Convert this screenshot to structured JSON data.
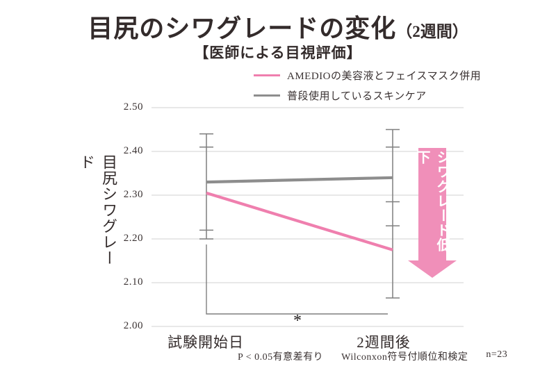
{
  "header": {
    "title": "目尻のシワグレードの変化",
    "title_suffix": "（2週間）",
    "subtitle": "【医師による目視評価】"
  },
  "footer": {
    "significance_note": "P < 0.05有意差有り",
    "test_note": "Wilconxon符号付順位和検定",
    "sample_note": "n=23"
  },
  "annotation": {
    "arrow_label": "シワグレード低下"
  },
  "colors": {
    "pink": "#ef7fae",
    "gray": "#8d8d8d",
    "arrow_pink": "#f08fb9",
    "gridline": "#d9d9d9",
    "error_bar": "#7f7f7f"
  },
  "chart_data": {
    "type": "line",
    "title": "目尻のシワグレードの変化（2週間）",
    "subtitle": "【医師による目視評価】",
    "ylabel": "目尻シワグレード",
    "xlabel": "",
    "ylim": [
      2.0,
      2.5
    ],
    "ytick_step": 0.1,
    "yticks": [
      "2.50",
      "2.40",
      "2.30",
      "2.20",
      "2.10",
      "2.00"
    ],
    "grid": true,
    "legend_position": "top-right",
    "categories": [
      "試験開始日",
      "2週間後"
    ],
    "series": [
      {
        "name": "AMEDIOの美容液とフェイスマスク併用",
        "color": "#ef7fae",
        "values": [
          2.305,
          2.175
        ],
        "error_low": [
          2.2,
          2.065
        ],
        "error_high": [
          2.41,
          2.285
        ]
      },
      {
        "name": "普段使用しているスキンケア",
        "color": "#8d8d8d",
        "values": [
          2.33,
          2.34
        ],
        "error_low": [
          2.22,
          2.23
        ],
        "error_high": [
          2.44,
          2.45
        ]
      }
    ],
    "error_bars": [
      {
        "x_index": 0,
        "span": [
          2.2,
          2.44
        ],
        "caps": [
          2.44,
          2.41,
          2.22,
          2.2
        ]
      },
      {
        "x_index": 1,
        "span": [
          2.065,
          2.45
        ],
        "caps": [
          2.45,
          2.41,
          2.285,
          2.23,
          2.065
        ]
      }
    ],
    "significance": {
      "label": "*",
      "between": [
        "試験開始日",
        "2週間後"
      ],
      "note": "P < 0.05有意差有り"
    },
    "annotations": [
      "シワグレード低下"
    ]
  }
}
